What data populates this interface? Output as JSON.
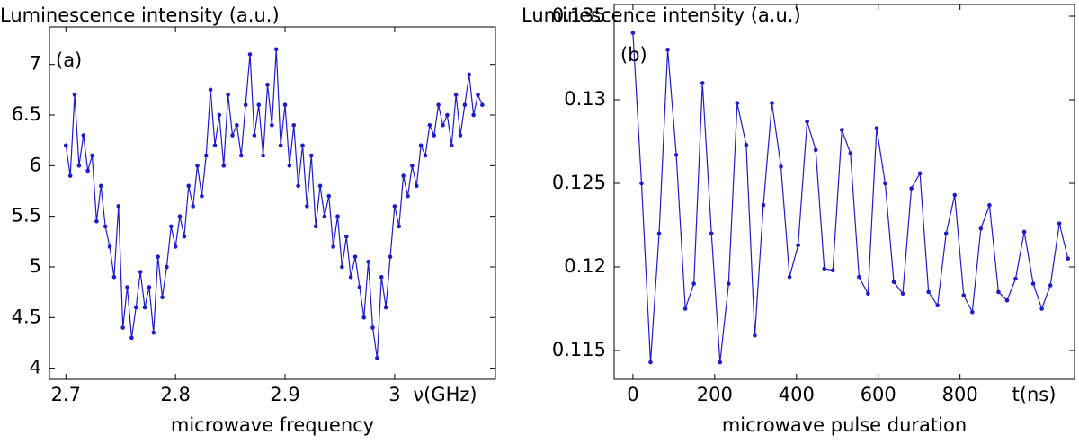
{
  "chart_data": [
    {
      "type": "line",
      "y_label": "Luminescence intensity (a.u.)",
      "x_label": "microwave frequency",
      "panel_label": "(a)",
      "x_unit_label": "ν(GHz)",
      "x": [
        2.7,
        2.704,
        2.708,
        2.712,
        2.716,
        2.72,
        2.724,
        2.728,
        2.732,
        2.736,
        2.74,
        2.744,
        2.748,
        2.752,
        2.756,
        2.76,
        2.764,
        2.768,
        2.772,
        2.776,
        2.78,
        2.784,
        2.788,
        2.792,
        2.796,
        2.8,
        2.804,
        2.808,
        2.812,
        2.816,
        2.82,
        2.824,
        2.828,
        2.832,
        2.836,
        2.84,
        2.844,
        2.848,
        2.852,
        2.856,
        2.86,
        2.864,
        2.868,
        2.872,
        2.876,
        2.88,
        2.884,
        2.888,
        2.892,
        2.896,
        2.9,
        2.904,
        2.908,
        2.912,
        2.916,
        2.92,
        2.924,
        2.928,
        2.932,
        2.936,
        2.94,
        2.944,
        2.948,
        2.952,
        2.956,
        2.96,
        2.964,
        2.968,
        2.972,
        2.976,
        2.98,
        2.984,
        2.988,
        2.992,
        2.996,
        3,
        3.004,
        3.008,
        3.012,
        3.016,
        3.02,
        3.024,
        3.028,
        3.032,
        3.036,
        3.04,
        3.044,
        3.048,
        3.052,
        3.056,
        3.06,
        3.064,
        3.068,
        3.072,
        3.076,
        3.08
      ],
      "series": [
        {
          "color": "#1c1ccc",
          "values": [
            6.2,
            5.9,
            6.7,
            6.0,
            6.3,
            5.95,
            6.1,
            5.45,
            5.8,
            5.4,
            5.2,
            4.9,
            5.6,
            4.4,
            4.8,
            4.3,
            4.6,
            4.95,
            4.6,
            4.8,
            4.35,
            5.1,
            4.7,
            5.0,
            5.4,
            5.2,
            5.5,
            5.3,
            5.8,
            5.6,
            6.0,
            5.7,
            6.1,
            6.75,
            6.2,
            6.5,
            6.0,
            6.7,
            6.3,
            6.4,
            6.1,
            6.6,
            7.1,
            6.3,
            6.6,
            6.1,
            6.8,
            6.4,
            7.15,
            6.2,
            6.6,
            6.0,
            6.4,
            5.8,
            6.2,
            5.6,
            6.1,
            5.4,
            5.8,
            5.5,
            5.7,
            5.2,
            5.5,
            5.0,
            5.3,
            4.9,
            5.1,
            4.8,
            4.5,
            5.05,
            4.4,
            4.1,
            4.9,
            4.6,
            5.1,
            5.6,
            5.4,
            5.9,
            5.7,
            6.0,
            5.8,
            6.2,
            6.1,
            6.4,
            6.3,
            6.6,
            6.4,
            6.5,
            6.2,
            6.7,
            6.3,
            6.6,
            6.9,
            6.5,
            6.7,
            6.6
          ]
        }
      ],
      "xlim": [
        2.685,
        3.092
      ],
      "xticks": [
        2.7,
        2.8,
        2.9,
        3
      ],
      "ylim": [
        3.89,
        7.37
      ],
      "yticks": [
        4,
        4.5,
        5,
        5.5,
        6,
        6.5,
        7
      ]
    },
    {
      "type": "line",
      "y_label": "Luminescence intensity (a.u.)",
      "x_label": "microwave pulse duration",
      "panel_label": "(b)",
      "x_unit_label": "t(ns)",
      "x": [
        0,
        21,
        43,
        64,
        85,
        106,
        128,
        149,
        170,
        192,
        213,
        234,
        255,
        277,
        298,
        319,
        340,
        362,
        383,
        404,
        426,
        447,
        468,
        489,
        511,
        532,
        553,
        575,
        596,
        617,
        638,
        660,
        681,
        702,
        723,
        745,
        766,
        787,
        809,
        830,
        851,
        872,
        894,
        915,
        936,
        957,
        979,
        1000,
        1021,
        1043,
        1064
      ],
      "series": [
        {
          "color": "#1c1ccc",
          "values": [
            0.134,
            0.125,
            0.1143,
            0.122,
            0.133,
            0.1267,
            0.1175,
            0.119,
            0.131,
            0.122,
            0.1143,
            0.119,
            0.1298,
            0.1273,
            0.1159,
            0.1237,
            0.1298,
            0.126,
            0.1194,
            0.1213,
            0.1287,
            0.127,
            0.1199,
            0.1198,
            0.1282,
            0.1268,
            0.1194,
            0.1184,
            0.1283,
            0.125,
            0.1191,
            0.1184,
            0.1247,
            0.1256,
            0.1185,
            0.1177,
            0.122,
            0.1243,
            0.1183,
            0.1173,
            0.1223,
            0.1237,
            0.1185,
            0.118,
            0.1193,
            0.1221,
            0.119,
            0.1175,
            0.1189,
            0.1226,
            0.1205
          ]
        }
      ],
      "xlim": [
        -46,
        1080
      ],
      "xticks": [
        0,
        200,
        400,
        600,
        800
      ],
      "ylim": [
        0.11328,
        0.1357
      ],
      "yticks": [
        0.115,
        0.12,
        0.125,
        0.13,
        0.135
      ]
    }
  ]
}
